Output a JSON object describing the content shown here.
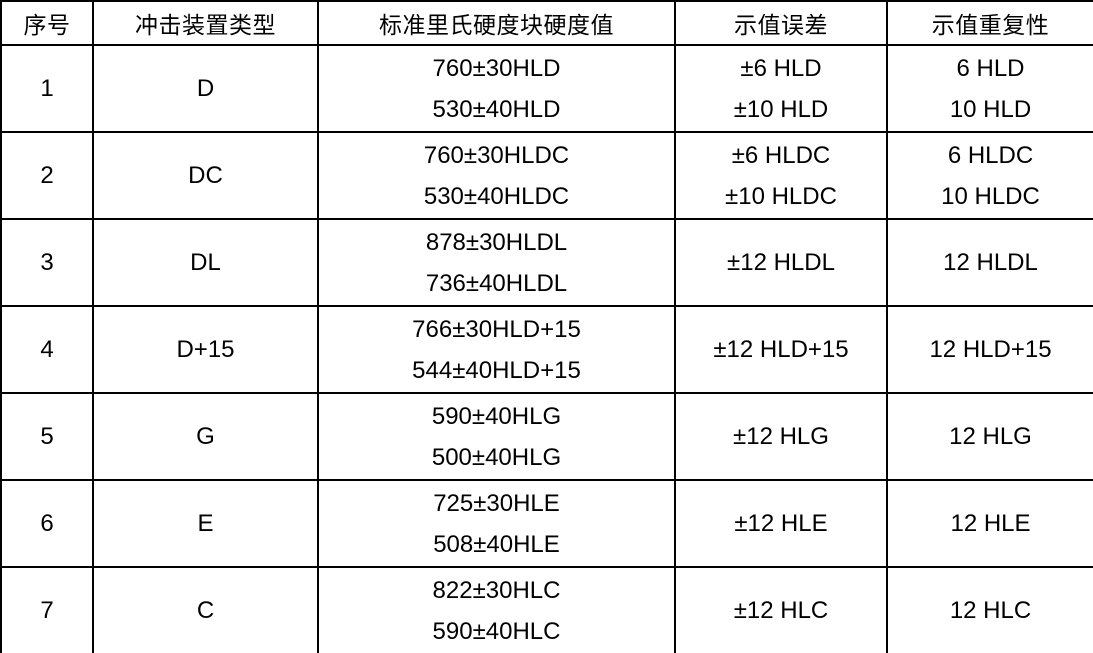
{
  "table": {
    "columns": [
      "序号",
      "冲击装置类型",
      "标准里氏硬度块硬度值",
      "示值误差",
      "示值重复性"
    ],
    "rows": [
      {
        "seq": "1",
        "type": "D",
        "hardness": [
          "760±30HLD",
          "530±40HLD"
        ],
        "error": [
          "±6 HLD",
          "±10 HLD"
        ],
        "repeatability": [
          "6 HLD",
          "10 HLD"
        ]
      },
      {
        "seq": "2",
        "type": "DC",
        "hardness": [
          "760±30HLDC",
          "530±40HLDC"
        ],
        "error": [
          "±6 HLDC",
          "±10 HLDC"
        ],
        "repeatability": [
          "6 HLDC",
          "10 HLDC"
        ]
      },
      {
        "seq": "3",
        "type": "DL",
        "hardness": [
          "878±30HLDL",
          "736±40HLDL"
        ],
        "error": [
          "±12 HLDL"
        ],
        "repeatability": [
          "12 HLDL"
        ]
      },
      {
        "seq": "4",
        "type": "D+15",
        "hardness": [
          "766±30HLD+15",
          "544±40HLD+15"
        ],
        "error": [
          "±12 HLD+15"
        ],
        "repeatability": [
          "12 HLD+15"
        ]
      },
      {
        "seq": "5",
        "type": "G",
        "hardness": [
          "590±40HLG",
          "500±40HLG"
        ],
        "error": [
          "±12 HLG"
        ],
        "repeatability": [
          "12 HLG"
        ]
      },
      {
        "seq": "6",
        "type": "E",
        "hardness": [
          "725±30HLE",
          "508±40HLE"
        ],
        "error": [
          "±12 HLE"
        ],
        "repeatability": [
          "12 HLE"
        ]
      },
      {
        "seq": "7",
        "type": "C",
        "hardness": [
          "822±30HLC",
          "590±40HLC"
        ],
        "error": [
          "±12 HLC"
        ],
        "repeatability": [
          "12 HLC"
        ]
      }
    ]
  }
}
